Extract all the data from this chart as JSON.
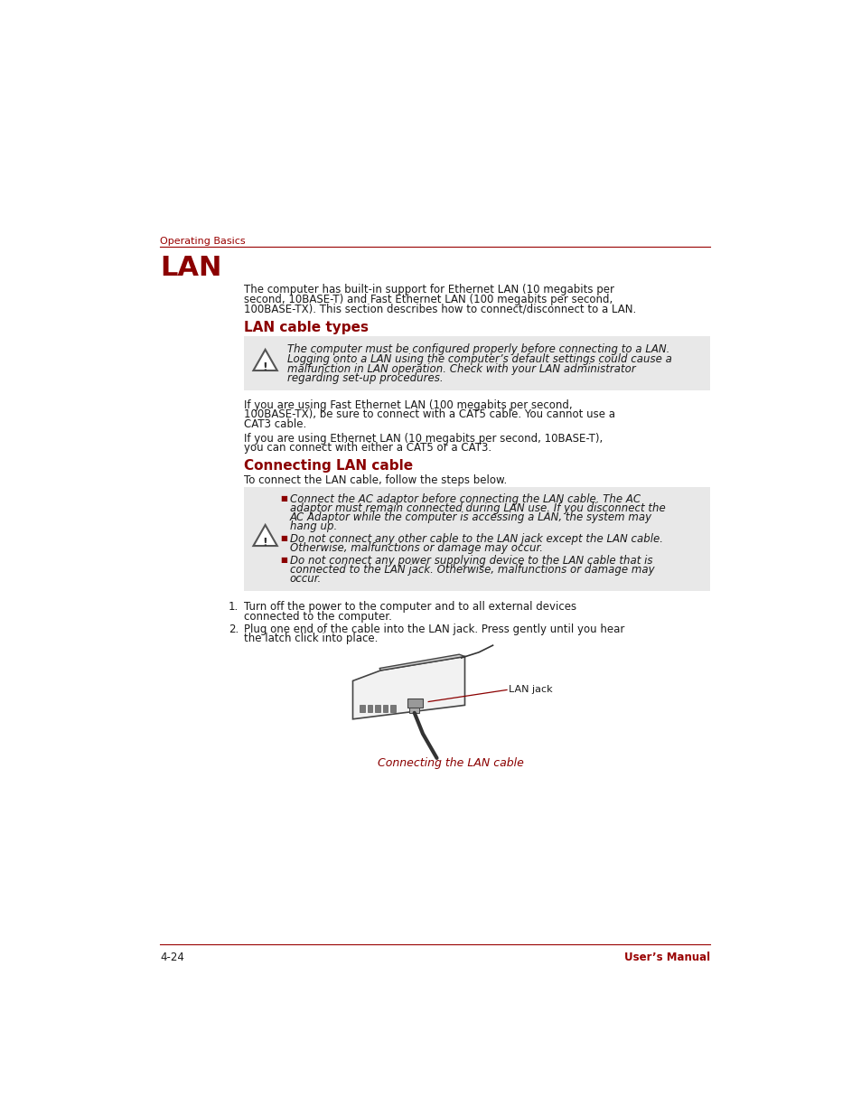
{
  "page_bg": "#ffffff",
  "red_color": "#8B0000",
  "dark_red": "#990000",
  "text_color": "#1a1a1a",
  "gray_bg": "#e8e8e8",
  "header_text": "Operating Basics",
  "section_title": "LAN",
  "subsection1": "LAN cable types",
  "subsection2": "Connecting LAN cable",
  "footer_left": "4-24",
  "footer_right": "User’s Manual",
  "intro_text": "The computer has built-in support for Ethernet LAN (10 megabits per\nsecond, 10BASE-T) and Fast Ethernet LAN (100 megabits per second,\n100BASE-TX). This section describes how to connect/disconnect to a LAN.",
  "warning1_text": "The computer must be configured properly before connecting to a LAN.\nLogging onto a LAN using the computer’s default settings could cause a\nmalfunction in LAN operation. Check with your LAN administrator\nregarding set-up procedures.",
  "body1_lines": [
    "If you are using Fast Ethernet LAN (100 megabits per second,",
    "100BASE-TX), be sure to connect with a CAT5 cable. You cannot use a",
    "CAT3 cable.",
    "",
    "If you are using Ethernet LAN (10 megabits per second, 10BASE-T),",
    "you can connect with either a CAT5 or a CAT3."
  ],
  "connecting_intro": "To connect the LAN cable, follow the steps below.",
  "warning2_bullets": [
    [
      "Connect the AC adaptor before connecting the LAN cable. The AC",
      "adaptor must remain connected during LAN use. If you disconnect the",
      "AC Adaptor while the computer is accessing a LAN, the system may",
      "hang up."
    ],
    [
      "Do not connect any other cable to the LAN jack except the LAN cable.",
      "Otherwise, malfunctions or damage may occur."
    ],
    [
      "Do not connect any power supplying device to the LAN cable that is",
      "connected to the LAN jack. Otherwise, malfunctions or damage may",
      "occur."
    ]
  ],
  "step1_lines": [
    "Turn off the power to the computer and to all external devices",
    "connected to the computer."
  ],
  "step2_lines": [
    "Plug one end of the cable into the LAN jack. Press gently until you hear",
    "the latch click into place."
  ],
  "figure_caption": "Connecting the LAN cable",
  "lan_jack_label": "LAN jack"
}
